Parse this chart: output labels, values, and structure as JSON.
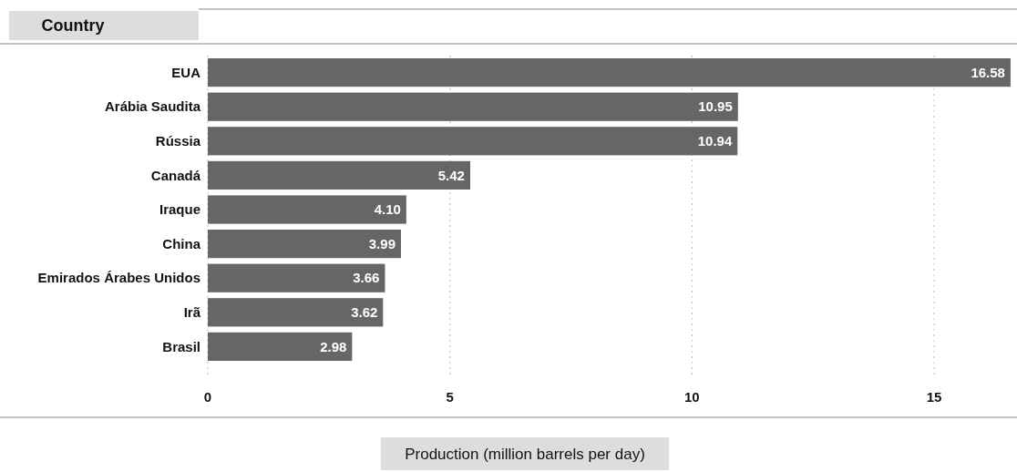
{
  "chart_data": {
    "type": "bar",
    "orientation": "horizontal",
    "ylabel": "Country",
    "xlabel": "Production (million barrels per day)",
    "categories": [
      "EUA",
      "Arábia Saudita",
      "Rússia",
      "Canadá",
      "Iraque",
      "China",
      "Emirados Árabes Unidos",
      "Irã",
      "Brasil"
    ],
    "values": [
      16.58,
      10.95,
      10.94,
      5.42,
      4.1,
      3.99,
      3.66,
      3.62,
      2.98
    ],
    "value_labels": [
      "16.58",
      "10.95",
      "10.94",
      "5.42",
      "4.10",
      "3.99",
      "3.66",
      "3.62",
      "2.98"
    ],
    "color": "#666666",
    "xlim": [
      0,
      16.6
    ],
    "xticks": [
      0,
      5,
      10,
      15
    ],
    "grid": "x"
  }
}
